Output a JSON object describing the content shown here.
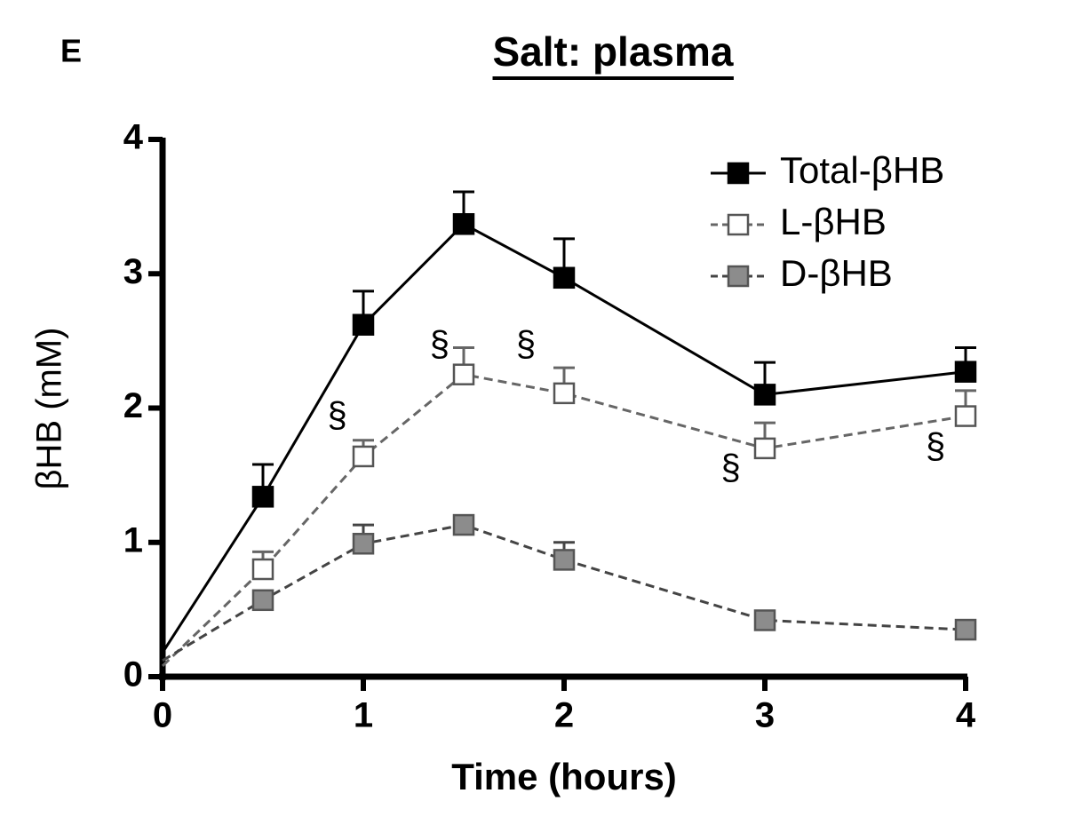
{
  "panel_label": "E",
  "chart_data": {
    "type": "line",
    "title": "Salt: plasma",
    "x_label": "Time (hours)",
    "y_label": "βHB (mM)",
    "x": [
      0,
      0.5,
      1,
      1.5,
      2,
      3,
      4
    ],
    "series": [
      {
        "name": "Total-βHB",
        "color": "#000000",
        "marker_fill": "#000000",
        "dashed": false,
        "values": [
          0.18,
          1.34,
          2.62,
          3.37,
          2.97,
          2.1,
          2.27
        ],
        "errors": [
          null,
          0.24,
          0.25,
          0.24,
          0.29,
          0.24,
          0.18
        ]
      },
      {
        "name": "L-βHB",
        "color": "#666666",
        "marker_fill": "#ffffff",
        "dashed": true,
        "values": [
          0.08,
          0.8,
          1.64,
          2.25,
          2.11,
          1.7,
          1.94
        ],
        "errors": [
          null,
          0.13,
          0.12,
          0.2,
          0.19,
          0.19,
          0.19
        ]
      },
      {
        "name": "D-βHB",
        "color": "#444444",
        "marker_fill": "#8c8c8c",
        "dashed": true,
        "values": [
          0.12,
          0.57,
          0.99,
          1.13,
          0.87,
          0.42,
          0.35
        ],
        "errors": [
          null,
          0.05,
          0.14,
          0.05,
          0.13,
          0.05,
          0.05
        ]
      }
    ],
    "annotations": [
      {
        "text": "§",
        "x": 0.87,
        "y": 1.93
      },
      {
        "text": "§",
        "x": 1.38,
        "y": 2.46
      },
      {
        "text": "§",
        "x": 1.81,
        "y": 2.46
      },
      {
        "text": "§",
        "x": 2.83,
        "y": 1.54
      },
      {
        "text": "§",
        "x": 3.85,
        "y": 1.7
      }
    ],
    "xlim": [
      0,
      4
    ],
    "xticks": [
      0,
      1,
      2,
      3,
      4
    ],
    "ylim": [
      0,
      4
    ],
    "yticks": [
      0,
      1,
      2,
      3,
      4
    ],
    "legend": "top-right"
  }
}
